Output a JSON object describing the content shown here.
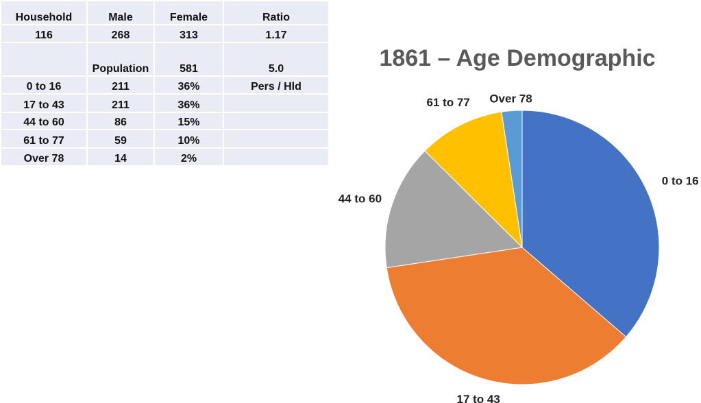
{
  "table": {
    "rows": [
      [
        "Household",
        "Male",
        "Female",
        "Ratio"
      ],
      [
        "116",
        "268",
        "313",
        "1.17"
      ],
      [
        "",
        "Population",
        "581",
        "5.0"
      ],
      [
        "0 to 16",
        "211",
        "36%",
        "Pers / Hld"
      ],
      [
        "17 to 43",
        "211",
        "36%",
        ""
      ],
      [
        "44 to 60",
        "86",
        "15%",
        ""
      ],
      [
        "61 to 77",
        "59",
        "10%",
        ""
      ],
      [
        "Over 78",
        "14",
        "2%",
        ""
      ]
    ]
  },
  "chart_data": {
    "type": "pie",
    "title": "1861 – Age Demographic",
    "categories": [
      "0 to 16",
      "17 to 43",
      "44 to 60",
      "61 to 77",
      "Over 78"
    ],
    "values": [
      211,
      211,
      86,
      59,
      14
    ],
    "colors": [
      "#4472C4",
      "#ED7D31",
      "#A5A5A5",
      "#FFC000",
      "#5B9BD5"
    ]
  }
}
